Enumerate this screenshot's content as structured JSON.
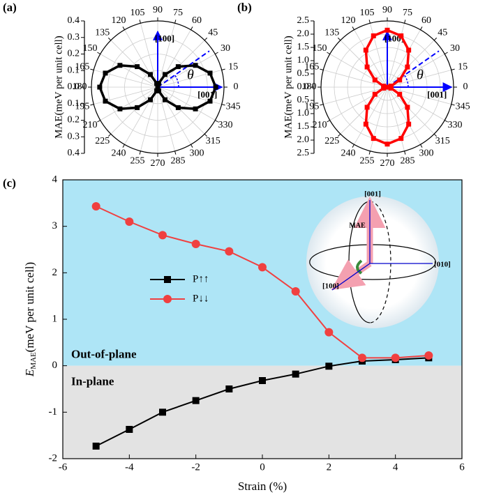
{
  "chart_data": [
    {
      "type": "polar",
      "panel_label": "(a)",
      "radial_label": "MAE(meV per unit cell)",
      "rlim": [
        0,
        0.4
      ],
      "rticks": [
        {
          "value": 0,
          "label": "0.0"
        },
        0.1,
        0.2,
        0.3,
        0.4
      ],
      "angle_ticks": [
        0,
        15,
        30,
        45,
        60,
        75,
        90,
        105,
        120,
        135,
        150,
        165,
        180,
        195,
        210,
        225,
        240,
        255,
        270,
        285,
        300,
        315,
        330,
        345
      ],
      "series": [
        {
          "color": "#000000",
          "x": [
            0,
            15,
            30,
            45,
            60,
            75,
            90,
            105,
            120,
            135,
            150,
            165,
            180,
            195,
            210,
            225,
            240,
            255,
            270,
            285,
            300,
            315,
            330,
            345
          ],
          "values": [
            0.35,
            0.327,
            0.263,
            0.175,
            0.088,
            0.023,
            0,
            0.023,
            0.088,
            0.175,
            0.263,
            0.327,
            0.35,
            0.327,
            0.263,
            0.175,
            0.088,
            0.023,
            0,
            0.023,
            0.088,
            0.175,
            0.263,
            0.327
          ]
        }
      ],
      "annotations": {
        "up": "[100]",
        "right": "[001]",
        "angle": "θ"
      }
    },
    {
      "type": "polar",
      "panel_label": "(b)",
      "radial_label": "MAE(meV per unit cell)",
      "rlim": [
        0,
        2.5
      ],
      "rticks": [
        {
          "value": 0,
          "label": "0.0"
        },
        0.5,
        {
          "value": 1,
          "label": "1.0"
        },
        1.5,
        {
          "value": 2,
          "label": "2.0"
        },
        2.5
      ],
      "angle_ticks": [
        0,
        15,
        30,
        45,
        60,
        75,
        90,
        105,
        120,
        135,
        150,
        165,
        180,
        195,
        210,
        225,
        240,
        255,
        270,
        285,
        300,
        315,
        330,
        345
      ],
      "series": [
        {
          "color": "#ff0000",
          "x": [
            0,
            15,
            30,
            45,
            60,
            75,
            90,
            105,
            120,
            135,
            150,
            165,
            180,
            195,
            210,
            225,
            240,
            255,
            270,
            285,
            300,
            315,
            330,
            345
          ],
          "values": [
            0,
            0.144,
            0.538,
            1.075,
            1.613,
            2.006,
            2.15,
            2.006,
            1.613,
            1.075,
            0.538,
            0.144,
            0,
            0.144,
            0.538,
            1.075,
            1.613,
            2.006,
            2.15,
            2.006,
            1.613,
            1.075,
            0.538,
            0.144
          ]
        }
      ],
      "annotations": {
        "up": "[100]",
        "right": "[001]",
        "angle": "θ"
      }
    },
    {
      "type": "line",
      "panel_label": "(c)",
      "xlabel": "Strain (%)",
      "ylabel": {
        "symbol": "E",
        "subscript": "MAE",
        "unit": "(meV per unit cell)"
      },
      "x": [
        -5,
        -4,
        -3,
        -2,
        -1,
        0,
        1,
        2,
        3,
        4,
        5
      ],
      "xlim": [
        -6,
        6
      ],
      "xticks": [
        -6,
        -4,
        -2,
        0,
        2,
        4,
        6
      ],
      "ylim": [
        -2,
        4
      ],
      "yticks": [
        -2,
        -1,
        0,
        1,
        2,
        3,
        4
      ],
      "series": [
        {
          "name": "P↑↑",
          "color": "#000000",
          "marker": "square",
          "values": [
            -1.73,
            -1.37,
            -1.0,
            -0.75,
            -0.5,
            -0.32,
            -0.18,
            -0.01,
            0.1,
            0.13,
            0.17
          ]
        },
        {
          "name": "P↓↓",
          "color": "#f04040",
          "marker": "circle",
          "values": [
            3.43,
            3.1,
            2.81,
            2.62,
            2.46,
            2.12,
            1.6,
            0.72,
            0.17,
            0.17,
            0.22
          ]
        }
      ],
      "regions": {
        "above": "Out-of-plane",
        "below": "In-plane"
      },
      "inset": {
        "z": "[001]",
        "y": "[010]",
        "x": "[100]",
        "vector": "MAE"
      }
    }
  ]
}
